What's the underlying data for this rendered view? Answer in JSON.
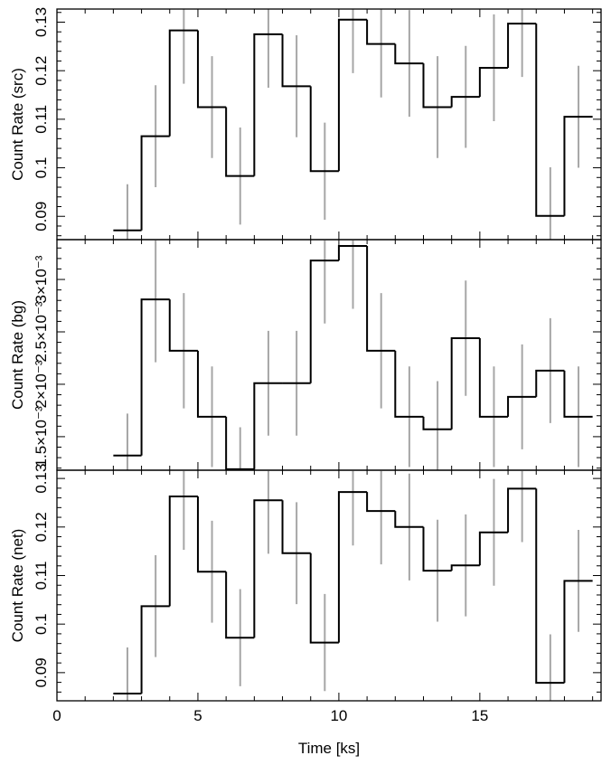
{
  "chart_data": {
    "type": "line",
    "x_axis": {
      "label": "Time [ks]",
      "range": [
        0,
        19.3
      ],
      "ticks": [
        0,
        5,
        10,
        15
      ],
      "tick_labels": [
        "0",
        "5",
        "10",
        "15"
      ]
    },
    "panels": [
      {
        "id": "src",
        "ylabel": "Count Rate (src)",
        "ylim": [
          0.0852,
          0.1327
        ],
        "yticks": [
          0.09,
          0.1,
          0.11,
          0.12,
          0.13
        ],
        "ytick_labels": [
          "0.09",
          "0.1",
          "0.11",
          "0.12",
          "0.13"
        ],
        "points": [
          {
            "x": 2.5,
            "y": 0.0871,
            "err": 0.0095
          },
          {
            "x": 3.5,
            "y": 0.1065,
            "err": 0.0105
          },
          {
            "x": 4.5,
            "y": 0.1283,
            "err": 0.011
          },
          {
            "x": 5.5,
            "y": 0.1125,
            "err": 0.0105
          },
          {
            "x": 6.5,
            "y": 0.0983,
            "err": 0.01
          },
          {
            "x": 7.5,
            "y": 0.1275,
            "err": 0.011
          },
          {
            "x": 8.5,
            "y": 0.1168,
            "err": 0.0105
          },
          {
            "x": 9.5,
            "y": 0.0993,
            "err": 0.01
          },
          {
            "x": 10.5,
            "y": 0.1305,
            "err": 0.011
          },
          {
            "x": 11.5,
            "y": 0.1255,
            "err": 0.011
          },
          {
            "x": 12.5,
            "y": 0.1215,
            "err": 0.011
          },
          {
            "x": 13.5,
            "y": 0.1125,
            "err": 0.0105
          },
          {
            "x": 14.5,
            "y": 0.1146,
            "err": 0.0105
          },
          {
            "x": 15.5,
            "y": 0.1206,
            "err": 0.011
          },
          {
            "x": 16.5,
            "y": 0.1297,
            "err": 0.011
          },
          {
            "x": 17.5,
            "y": 0.0901,
            "err": 0.01
          },
          {
            "x": 18.5,
            "y": 0.1105,
            "err": 0.0105
          }
        ]
      },
      {
        "id": "bg",
        "ylabel": "Count Rate (bg)",
        "ylim": [
          0.00118,
          0.00338
        ],
        "yticks": [
          0.0015,
          0.002,
          0.0025,
          0.003
        ],
        "ytick_labels": [
          "1.5×10⁻³",
          "2×10⁻³",
          "2.5×10⁻³",
          "3×10⁻³"
        ],
        "points": [
          {
            "x": 2.5,
            "y": 0.00132,
            "err": 0.0004
          },
          {
            "x": 3.5,
            "y": 0.00281,
            "err": 0.0006
          },
          {
            "x": 4.5,
            "y": 0.00232,
            "err": 0.00055
          },
          {
            "x": 5.5,
            "y": 0.00169,
            "err": 0.00048
          },
          {
            "x": 6.5,
            "y": 0.00119,
            "err": 0.0004
          },
          {
            "x": 7.5,
            "y": 0.00201,
            "err": 0.0005
          },
          {
            "x": 8.5,
            "y": 0.00201,
            "err": 0.0005
          },
          {
            "x": 9.5,
            "y": 0.00318,
            "err": 0.0006
          },
          {
            "x": 10.5,
            "y": 0.00332,
            "err": 0.0006
          },
          {
            "x": 11.5,
            "y": 0.00232,
            "err": 0.00055
          },
          {
            "x": 12.5,
            "y": 0.00169,
            "err": 0.00048
          },
          {
            "x": 13.5,
            "y": 0.00157,
            "err": 0.00046
          },
          {
            "x": 14.5,
            "y": 0.00244,
            "err": 0.00055
          },
          {
            "x": 15.5,
            "y": 0.00169,
            "err": 0.00048
          },
          {
            "x": 16.5,
            "y": 0.00188,
            "err": 0.0005
          },
          {
            "x": 17.5,
            "y": 0.00213,
            "err": 0.0005
          },
          {
            "x": 18.5,
            "y": 0.00169,
            "err": 0.00048
          }
        ]
      },
      {
        "id": "net",
        "ylabel": "Count Rate (net)",
        "ylim": [
          0.0842,
          0.1317
        ],
        "yticks": [
          0.09,
          0.1,
          0.11,
          0.12,
          0.13
        ],
        "ytick_labels": [
          "0.09",
          "0.1",
          "0.11",
          "0.12",
          "0.13"
        ],
        "points": [
          {
            "x": 2.5,
            "y": 0.0857,
            "err": 0.0095
          },
          {
            "x": 3.5,
            "y": 0.1037,
            "err": 0.0105
          },
          {
            "x": 4.5,
            "y": 0.1263,
            "err": 0.011
          },
          {
            "x": 5.5,
            "y": 0.1108,
            "err": 0.0105
          },
          {
            "x": 6.5,
            "y": 0.0972,
            "err": 0.01
          },
          {
            "x": 7.5,
            "y": 0.1255,
            "err": 0.011
          },
          {
            "x": 8.5,
            "y": 0.1146,
            "err": 0.0105
          },
          {
            "x": 9.5,
            "y": 0.0962,
            "err": 0.01
          },
          {
            "x": 10.5,
            "y": 0.1272,
            "err": 0.011
          },
          {
            "x": 11.5,
            "y": 0.1233,
            "err": 0.011
          },
          {
            "x": 12.5,
            "y": 0.12,
            "err": 0.011
          },
          {
            "x": 13.5,
            "y": 0.111,
            "err": 0.0105
          },
          {
            "x": 14.5,
            "y": 0.1121,
            "err": 0.0105
          },
          {
            "x": 15.5,
            "y": 0.1189,
            "err": 0.011
          },
          {
            "x": 16.5,
            "y": 0.1279,
            "err": 0.011
          },
          {
            "x": 17.5,
            "y": 0.0879,
            "err": 0.01
          },
          {
            "x": 18.5,
            "y": 0.1089,
            "err": 0.0105
          }
        ]
      }
    ],
    "colors": {
      "line": "#000000",
      "error_bars": "#a6a6a6",
      "frame": "#000000"
    },
    "grid": false,
    "legend": "none"
  }
}
